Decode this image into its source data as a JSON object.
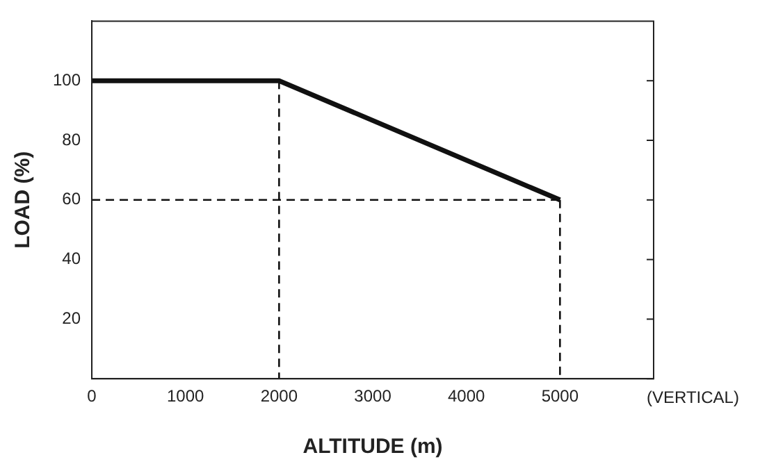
{
  "chart_data": {
    "type": "line",
    "xlabel": "ALTITUDE (m)",
    "ylabel": "LOAD (%)",
    "xlim": [
      0,
      6000
    ],
    "xticks": [
      0,
      1000,
      2000,
      3000,
      4000,
      5000
    ],
    "ylim": [
      0,
      120
    ],
    "yticks": [
      {
        "value": 0,
        "label": null
      },
      20,
      40,
      60,
      80,
      100
    ],
    "grid": false,
    "legend": false,
    "marker": "none",
    "line_style": "solid",
    "series": [
      {
        "color": "#111111",
        "x": [
          0,
          2000,
          5000
        ],
        "values": [
          100,
          100,
          60
        ]
      },
      {
        "color": "#111111",
        "x": [
          2000,
          2000
        ],
        "values": [
          100,
          0
        ],
        "line_style": "dashed"
      },
      {
        "color": "#111111",
        "x": [
          0,
          5000
        ],
        "values": [
          60,
          60
        ],
        "line_style": "dashed"
      },
      {
        "color": "#111111",
        "x": [
          5000,
          5000
        ],
        "values": [
          60,
          0
        ],
        "line_style": "dashed"
      }
    ],
    "annotations": [
      "(VERTICAL)"
    ]
  }
}
